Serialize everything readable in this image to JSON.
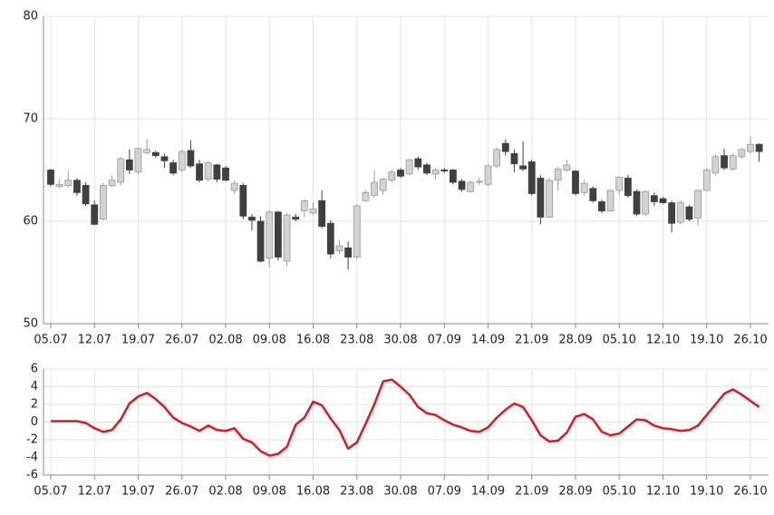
{
  "chart_data": [
    {
      "type": "candlestick",
      "categories": [
        "05.07",
        null,
        null,
        null,
        null,
        "12.07",
        null,
        null,
        null,
        null,
        "19.07",
        null,
        null,
        null,
        null,
        "26.07",
        null,
        null,
        null,
        null,
        "02.08",
        null,
        null,
        null,
        null,
        "09.08",
        null,
        null,
        null,
        null,
        "16.08",
        null,
        null,
        null,
        null,
        "23.08",
        null,
        null,
        null,
        null,
        "30.08",
        null,
        null,
        null,
        null,
        "07.09",
        null,
        null,
        null,
        null,
        "14.09",
        null,
        null,
        null,
        null,
        "21.09",
        null,
        null,
        null,
        null,
        "28.09",
        null,
        null,
        null,
        null,
        "05.10",
        null,
        null,
        null,
        null,
        "12.10",
        null,
        null,
        null,
        null,
        "19.10",
        null,
        null,
        null,
        null,
        "26.10",
        null
      ],
      "open": [
        65.0,
        63.4,
        63.5,
        64.0,
        63.5,
        61.6,
        60.2,
        63.5,
        63.8,
        66.0,
        64.8,
        66.7,
        66.7,
        66.3,
        65.7,
        65.0,
        66.9,
        65.6,
        64.1,
        65.5,
        65.2,
        63.0,
        63.5,
        60.4,
        60.0,
        56.4,
        60.9,
        56.1,
        60.4,
        61.0,
        60.8,
        62.0,
        59.8,
        57.1,
        57.4,
        56.5,
        62.0,
        62.5,
        63.0,
        64.0,
        65.0,
        64.6,
        66.1,
        65.5,
        64.6,
        65.0,
        65.0,
        63.9,
        62.9,
        63.8,
        63.6,
        65.4,
        67.6,
        66.6,
        65.4,
        65.8,
        64.2,
        60.4,
        64.0,
        65.0,
        64.9,
        62.8,
        63.2,
        61.9,
        61.0,
        63.0,
        64.2,
        62.9,
        60.7,
        62.5,
        62.2,
        61.8,
        59.9,
        61.4,
        60.3,
        63.0,
        64.7,
        66.4,
        65.1,
        66.3,
        66.8,
        67.5
      ],
      "high": [
        65.1,
        64.1,
        64.9,
        64.2,
        63.8,
        62.0,
        63.7,
        64.5,
        66.3,
        67.0,
        67.2,
        68.0,
        66.9,
        66.6,
        66.0,
        67.0,
        67.9,
        66.0,
        65.9,
        65.6,
        65.4,
        64.0,
        63.7,
        60.7,
        60.5,
        61.1,
        61.0,
        60.8,
        60.7,
        62.1,
        61.8,
        63.0,
        60.1,
        58.2,
        58.0,
        61.7,
        63.0,
        65.0,
        64.2,
        65.0,
        65.2,
        66.1,
        66.3,
        65.7,
        65.2,
        65.2,
        65.1,
        64.1,
        64.0,
        64.3,
        65.6,
        67.2,
        68.0,
        67.0,
        67.8,
        66.0,
        64.5,
        64.2,
        65.3,
        66.0,
        65.0,
        64.0,
        63.4,
        62.1,
        63.1,
        64.4,
        64.5,
        63.1,
        63.0,
        62.8,
        62.4,
        62.0,
        62.0,
        61.6,
        63.1,
        65.2,
        66.5,
        67.1,
        66.6,
        67.2,
        68.3,
        67.6
      ],
      "low": [
        63.4,
        63.2,
        63.3,
        62.5,
        61.5,
        59.6,
        60.1,
        63.3,
        63.5,
        64.6,
        64.6,
        66.5,
        66.2,
        65.2,
        64.5,
        64.8,
        65.2,
        63.8,
        63.9,
        63.8,
        63.9,
        62.7,
        60.2,
        59.1,
        56.0,
        55.5,
        56.2,
        55.6,
        60.0,
        60.4,
        60.6,
        59.3,
        56.4,
        56.8,
        55.3,
        56.3,
        61.9,
        62.3,
        62.6,
        63.8,
        64.2,
        64.5,
        65.0,
        64.5,
        64.1,
        64.7,
        63.6,
        62.9,
        62.8,
        63.5,
        63.4,
        65.2,
        66.4,
        64.8,
        64.9,
        62.5,
        59.7,
        60.3,
        63.0,
        64.8,
        62.5,
        62.5,
        61.8,
        60.8,
        60.9,
        62.6,
        62.3,
        60.5,
        60.5,
        61.5,
        61.7,
        58.9,
        59.7,
        60.0,
        59.6,
        62.9,
        64.5,
        65.0,
        64.9,
        66.1,
        66.6,
        65.8
      ],
      "close": [
        63.6,
        63.6,
        64.0,
        62.8,
        61.7,
        59.7,
        63.5,
        64.0,
        66.1,
        65.0,
        67.1,
        67.0,
        66.4,
        65.9,
        64.7,
        66.8,
        65.4,
        64.0,
        65.7,
        64.1,
        64.0,
        63.7,
        60.5,
        60.1,
        56.1,
        60.9,
        56.5,
        60.6,
        60.2,
        62.0,
        61.2,
        59.5,
        56.8,
        57.6,
        56.5,
        61.5,
        62.8,
        63.8,
        64.1,
        64.8,
        64.4,
        66.0,
        65.3,
        64.7,
        65.0,
        64.9,
        63.8,
        63.1,
        63.8,
        63.9,
        65.4,
        67.0,
        66.8,
        65.6,
        65.1,
        62.7,
        60.4,
        64.0,
        65.1,
        65.5,
        62.7,
        63.7,
        62.0,
        61.0,
        63.0,
        64.3,
        62.5,
        60.7,
        62.9,
        61.9,
        61.8,
        59.8,
        61.8,
        60.2,
        63.0,
        65.0,
        66.3,
        65.2,
        66.4,
        67.0,
        67.5,
        66.8
      ],
      "up_color": "#d3d3d3",
      "down_color": "#404040",
      "ylim": [
        50,
        80
      ],
      "yticks": [
        50,
        60,
        70,
        80
      ],
      "grid": true
    },
    {
      "type": "line",
      "categories": [
        "05.07",
        null,
        null,
        null,
        null,
        "12.07",
        null,
        null,
        null,
        null,
        "19.07",
        null,
        null,
        null,
        null,
        "26.07",
        null,
        null,
        null,
        null,
        "02.08",
        null,
        null,
        null,
        null,
        "09.08",
        null,
        null,
        null,
        null,
        "16.08",
        null,
        null,
        null,
        null,
        "23.08",
        null,
        null,
        null,
        null,
        "30.08",
        null,
        null,
        null,
        null,
        "07.09",
        null,
        null,
        null,
        null,
        "14.09",
        null,
        null,
        null,
        null,
        "21.09",
        null,
        null,
        null,
        null,
        "28.09",
        null,
        null,
        null,
        null,
        "05.10",
        null,
        null,
        null,
        null,
        "12.10",
        null,
        null,
        null,
        null,
        "19.10",
        null,
        null,
        null,
        null,
        "26.10",
        null
      ],
      "values": [
        0.1,
        0.1,
        0.1,
        0.1,
        -0.1,
        -0.7,
        -1.1,
        -0.9,
        0.3,
        2.1,
        2.9,
        3.3,
        2.6,
        1.7,
        0.5,
        -0.1,
        -0.5,
        -1.0,
        -0.4,
        -0.9,
        -1.0,
        -0.7,
        -1.9,
        -2.3,
        -3.3,
        -3.8,
        -3.6,
        -2.8,
        -0.3,
        0.5,
        2.3,
        1.9,
        0.4,
        -0.9,
        -3.0,
        -2.3,
        -0.2,
        2.0,
        4.6,
        4.8,
        4.0,
        3.1,
        1.7,
        1.0,
        0.8,
        0.2,
        -0.3,
        -0.6,
        -1.0,
        -1.1,
        -0.6,
        0.5,
        1.4,
        2.1,
        1.7,
        0.2,
        -1.5,
        -2.2,
        -2.1,
        -1.2,
        0.6,
        0.9,
        0.3,
        -1.1,
        -1.5,
        -1.3,
        -0.5,
        0.3,
        0.2,
        -0.4,
        -0.7,
        -0.8,
        -1.0,
        -0.9,
        -0.4,
        0.8,
        2.0,
        3.2,
        3.7,
        3.1,
        2.4,
        1.7
      ],
      "color": "#e8141b",
      "ylim": [
        -6,
        6
      ],
      "yticks": [
        -6,
        -4,
        -2,
        0,
        2,
        4,
        6
      ],
      "grid": true
    }
  ]
}
